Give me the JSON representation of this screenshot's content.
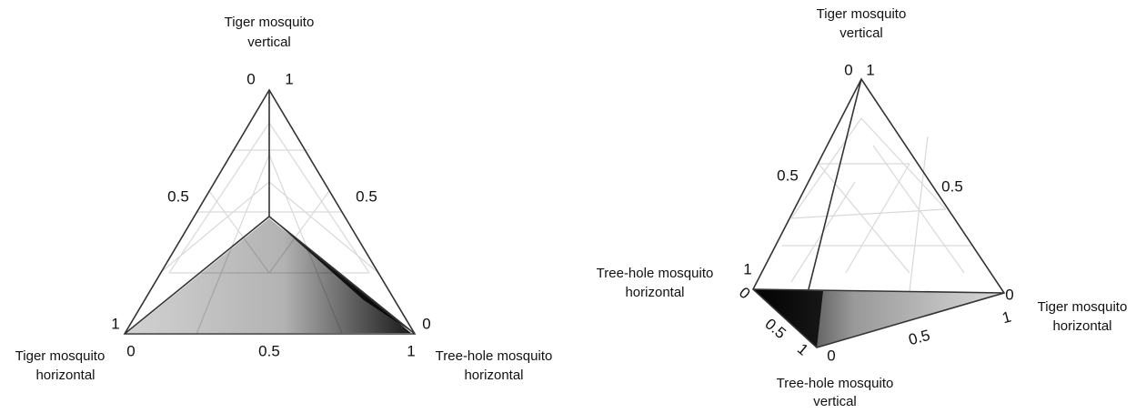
{
  "left_panel": {
    "top_label": [
      "Tiger mosquito",
      "vertical"
    ],
    "top_ticks": [
      "0",
      "1"
    ],
    "side_ticks": [
      "0.5",
      "0.5"
    ],
    "left_tick": "1",
    "right_tick": "0",
    "left_label": [
      "Tiger mosquito",
      "horizontal"
    ],
    "bottom_ticks": [
      "0",
      "0.5",
      "1"
    ],
    "right_label": [
      "Tree-hole mosquito",
      "horizontal"
    ]
  },
  "right_panel": {
    "top_label": [
      "Tiger mosquito",
      "vertical"
    ],
    "top_ticks": [
      "0",
      "1"
    ],
    "side_ticks": [
      "0.5",
      "0.5"
    ],
    "left_label": [
      "Tree-hole mosquito",
      "horizontal"
    ],
    "left_ticks": [
      "1",
      "0"
    ],
    "right_ticks": [
      "0",
      "1"
    ],
    "right_label": [
      "Tiger mosquito",
      "horizontal"
    ],
    "front_ticks": [
      "0.5",
      "1",
      "0.5",
      "0"
    ],
    "bottom_label": [
      "Tree-hole mosquito",
      "vertical"
    ]
  }
}
